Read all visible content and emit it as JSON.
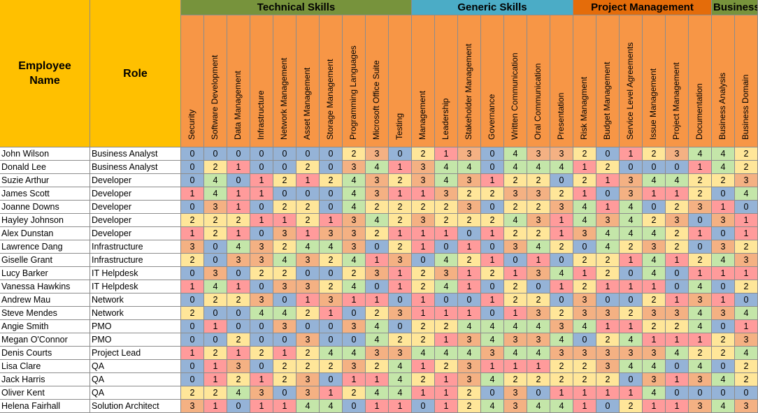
{
  "header": {
    "employee_label": "Employee Name",
    "role_label": "Role"
  },
  "groups": [
    {
      "label": "Technical Skills",
      "color": "#77933c",
      "span": 10
    },
    {
      "label": "Generic Skills",
      "color": "#4bacc6",
      "span": 7
    },
    {
      "label": "Project Management",
      "color": "#e46c0a",
      "span": 6
    },
    {
      "label": "Business",
      "color": "#77933c",
      "span": 2
    }
  ],
  "skills": [
    "Security",
    "Software Development",
    "Data Management",
    "Infrastructure",
    "Network Management",
    "Asset Management",
    "Storage Management",
    "Programming Languages",
    "Microsoft Office Suite",
    "Testing",
    "Management",
    "Leadership",
    "Stakeholder Management",
    "Governance",
    "Written Communication",
    "Oral Communication",
    "Presentation",
    "Risk Managment",
    "Budget Management",
    "Service Level Agreements",
    "Issue Management",
    "Project Management",
    "Documentation",
    "Business Analysis",
    "Business Domain"
  ],
  "level_colors": {
    "0": "#95b3d7",
    "1": "#ff9b9b",
    "2": "#ffe699",
    "3": "#f4b183",
    "4": "#c4e6a9"
  },
  "employees": [
    {
      "name": "John Wilson",
      "role": "Business Analyst",
      "scores": [
        0,
        0,
        0,
        0,
        0,
        0,
        0,
        2,
        3,
        0,
        2,
        1,
        3,
        0,
        4,
        3,
        3,
        2,
        0,
        1,
        2,
        3,
        4,
        4,
        2
      ]
    },
    {
      "name": "Donald Lee",
      "role": "Business Analyst",
      "scores": [
        0,
        2,
        1,
        0,
        0,
        2,
        0,
        3,
        4,
        1,
        3,
        4,
        4,
        0,
        4,
        4,
        4,
        1,
        2,
        0,
        0,
        0,
        1,
        4,
        2
      ]
    },
    {
      "name": "Suzie Arthur",
      "role": "Developer",
      "scores": [
        0,
        4,
        0,
        1,
        2,
        1,
        2,
        4,
        3,
        2,
        3,
        4,
        3,
        1,
        2,
        2,
        0,
        2,
        1,
        3,
        4,
        4,
        2,
        2,
        3
      ]
    },
    {
      "name": "James Scott",
      "role": "Developer",
      "scores": [
        1,
        4,
        1,
        1,
        0,
        0,
        0,
        4,
        3,
        1,
        1,
        3,
        2,
        2,
        3,
        3,
        2,
        1,
        0,
        3,
        1,
        1,
        2,
        0,
        4
      ]
    },
    {
      "name": "Joanne Downs",
      "role": "Developer",
      "scores": [
        0,
        3,
        1,
        0,
        2,
        2,
        0,
        4,
        2,
        2,
        2,
        2,
        3,
        0,
        2,
        2,
        3,
        4,
        1,
        4,
        0,
        2,
        3,
        1,
        0
      ]
    },
    {
      "name": "Hayley Johnson",
      "role": "Developer",
      "scores": [
        2,
        2,
        2,
        1,
        1,
        2,
        1,
        3,
        4,
        2,
        3,
        2,
        2,
        2,
        4,
        3,
        1,
        4,
        3,
        4,
        2,
        3,
        0,
        3,
        1
      ]
    },
    {
      "name": "Alex Dunstan",
      "role": "Developer",
      "scores": [
        1,
        2,
        1,
        0,
        3,
        1,
        3,
        3,
        2,
        1,
        1,
        1,
        0,
        1,
        2,
        2,
        1,
        3,
        4,
        4,
        4,
        2,
        1,
        0,
        1
      ]
    },
    {
      "name": "Lawrence Dang",
      "role": "Infrastructure",
      "scores": [
        3,
        0,
        4,
        3,
        2,
        4,
        4,
        3,
        0,
        2,
        1,
        0,
        1,
        0,
        3,
        4,
        2,
        0,
        4,
        2,
        3,
        2,
        0,
        3,
        2
      ]
    },
    {
      "name": "Giselle Grant",
      "role": "Infrastructure",
      "scores": [
        2,
        0,
        3,
        3,
        4,
        3,
        2,
        4,
        1,
        3,
        0,
        4,
        2,
        1,
        0,
        1,
        0,
        2,
        2,
        1,
        4,
        1,
        2,
        4,
        3
      ]
    },
    {
      "name": "Lucy Barker",
      "role": "IT Helpdesk",
      "scores": [
        0,
        3,
        0,
        2,
        2,
        0,
        0,
        2,
        3,
        1,
        2,
        3,
        1,
        2,
        1,
        3,
        4,
        1,
        2,
        0,
        4,
        0,
        1,
        1,
        1
      ]
    },
    {
      "name": "Vanessa Hawkins",
      "role": "IT Helpdesk",
      "scores": [
        1,
        4,
        1,
        0,
        3,
        3,
        2,
        4,
        0,
        1,
        2,
        4,
        1,
        0,
        2,
        0,
        1,
        2,
        1,
        1,
        1,
        0,
        4,
        0,
        2
      ]
    },
    {
      "name": "Andrew Mau",
      "role": "Network",
      "scores": [
        0,
        2,
        2,
        3,
        0,
        1,
        3,
        1,
        1,
        0,
        1,
        0,
        0,
        1,
        2,
        2,
        0,
        3,
        0,
        0,
        2,
        1,
        3,
        1,
        0
      ]
    },
    {
      "name": "Steve Mendes",
      "role": "Network",
      "scores": [
        2,
        0,
        0,
        4,
        4,
        2,
        1,
        0,
        2,
        3,
        1,
        1,
        1,
        0,
        1,
        3,
        2,
        3,
        3,
        2,
        3,
        3,
        4,
        3,
        4
      ]
    },
    {
      "name": "Angie Smith",
      "role": "PMO",
      "scores": [
        0,
        1,
        0,
        0,
        3,
        0,
        0,
        3,
        4,
        0,
        2,
        2,
        4,
        4,
        4,
        4,
        3,
        4,
        1,
        1,
        2,
        2,
        4,
        0,
        1
      ]
    },
    {
      "name": "Megan O'Connor",
      "role": "PMO",
      "scores": [
        0,
        0,
        2,
        0,
        0,
        3,
        0,
        0,
        4,
        2,
        2,
        1,
        3,
        4,
        3,
        3,
        4,
        0,
        2,
        4,
        1,
        1,
        1,
        2,
        3
      ]
    },
    {
      "name": "Denis Courts",
      "role": "Project Lead",
      "scores": [
        1,
        2,
        1,
        2,
        1,
        2,
        4,
        4,
        3,
        3,
        4,
        4,
        4,
        3,
        4,
        4,
        3,
        3,
        3,
        3,
        3,
        4,
        2,
        2,
        4
      ]
    },
    {
      "name": "Lisa Clare",
      "role": "QA",
      "scores": [
        0,
        1,
        3,
        0,
        2,
        2,
        2,
        3,
        2,
        4,
        1,
        2,
        3,
        1,
        1,
        1,
        2,
        2,
        3,
        4,
        4,
        0,
        4,
        0,
        2
      ]
    },
    {
      "name": "Jack Harris",
      "role": "QA",
      "scores": [
        0,
        1,
        2,
        1,
        2,
        3,
        0,
        1,
        1,
        4,
        2,
        1,
        3,
        4,
        2,
        2,
        2,
        2,
        2,
        0,
        3,
        1,
        3,
        4,
        2
      ]
    },
    {
      "name": "Oliver Kent",
      "role": "QA",
      "scores": [
        2,
        2,
        4,
        3,
        0,
        3,
        1,
        2,
        4,
        4,
        1,
        1,
        2,
        0,
        3,
        0,
        1,
        1,
        1,
        1,
        4,
        0,
        0,
        0,
        0
      ]
    },
    {
      "name": "Helena Fairhall",
      "role": "Solution Architect",
      "scores": [
        3,
        1,
        0,
        1,
        1,
        4,
        4,
        0,
        1,
        1,
        0,
        1,
        2,
        4,
        3,
        4,
        4,
        1,
        0,
        2,
        1,
        1,
        3,
        4,
        3
      ]
    }
  ]
}
